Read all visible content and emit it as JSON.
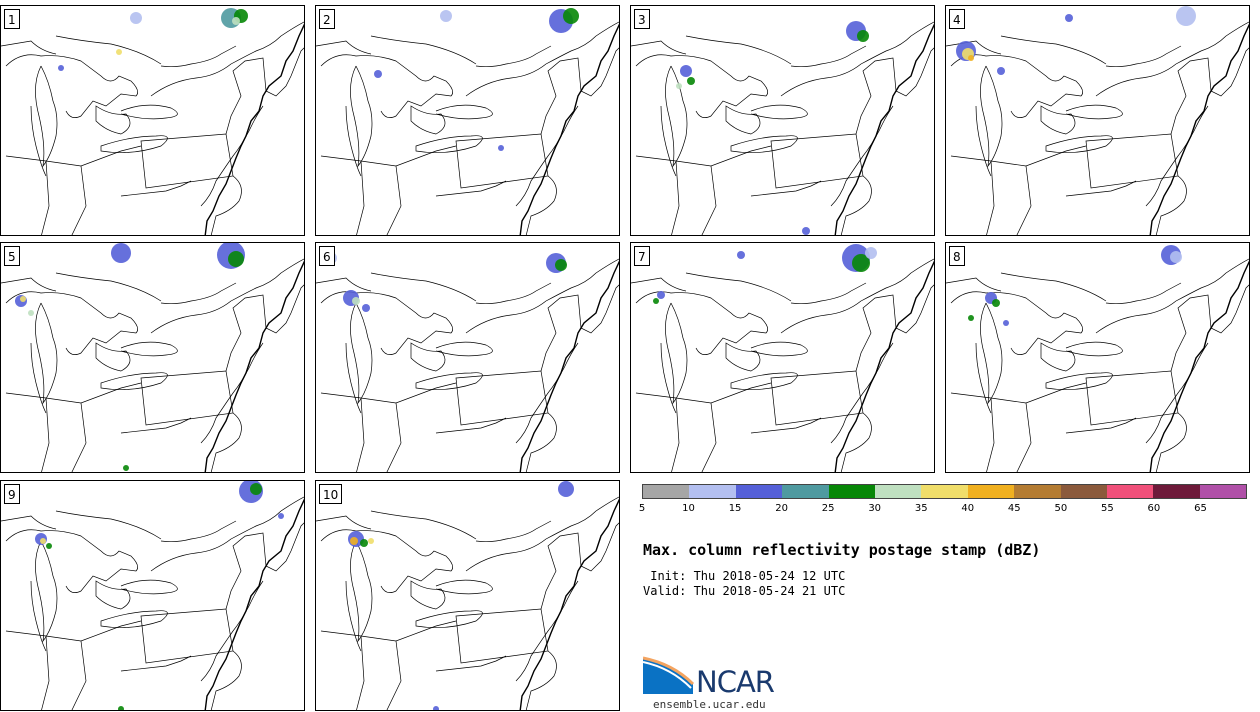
{
  "panels": [
    {
      "label": "1"
    },
    {
      "label": "2"
    },
    {
      "label": "3"
    },
    {
      "label": "4"
    },
    {
      "label": "5"
    },
    {
      "label": "6"
    },
    {
      "label": "7"
    },
    {
      "label": "8"
    },
    {
      "label": "9"
    },
    {
      "label": "10"
    }
  ],
  "colorbar": {
    "colors": [
      "#a6a6a6",
      "#b3bff0",
      "#5560d8",
      "#4f9aa0",
      "#078707",
      "#bfe0c0",
      "#f0de6a",
      "#f0b020",
      "#b47c32",
      "#8b5a3c",
      "#f0507a",
      "#6e1a3a",
      "#b050a8"
    ],
    "ticks": [
      "5",
      "10",
      "15",
      "20",
      "25",
      "30",
      "35",
      "40",
      "45",
      "50",
      "55",
      "60",
      "65"
    ],
    "range": [
      5,
      70
    ]
  },
  "title": "Max. column reflectivity postage stamp (dBZ)",
  "init": " Init: Thu 2018-05-24 12 UTC",
  "valid": "Valid: Thu 2018-05-24 21 UTC",
  "logo_text": "NCAR",
  "website": "ensemble.ucar.edu"
}
